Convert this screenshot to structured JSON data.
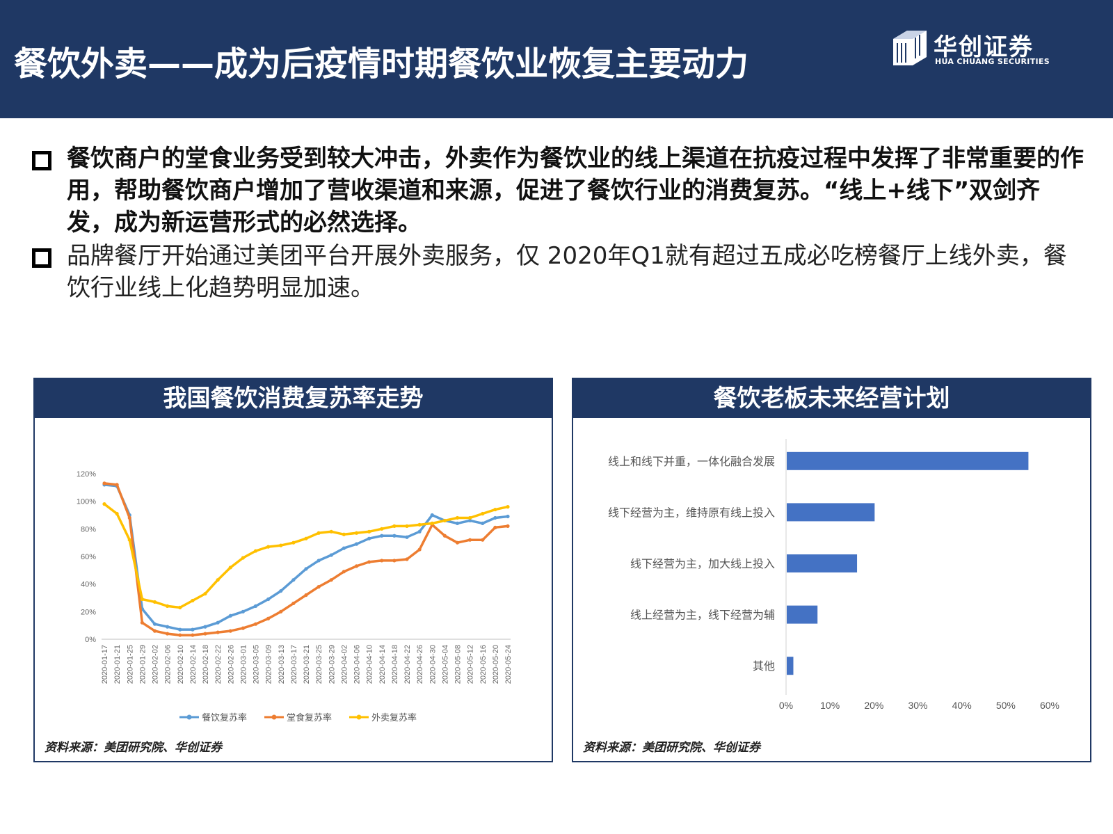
{
  "header": {
    "title": "餐饮外卖——成为后疫情时期餐饮业恢复主要动力",
    "logo_name": "华创证券",
    "logo_en": "HUA CHUANG SECURITIES"
  },
  "bullets": [
    {
      "text": "餐饮商户的堂食业务受到较大冲击，外卖作为餐饮业的线上渠道在抗疫过程中发挥了非常重要的作用，帮助餐饮商户增加了营收渠道和来源，促进了餐饮行业的消费复苏。“线上+线下”双剑齐发，成为新运营形式的必然选择。"
    },
    {
      "text": "品牌餐厅开始通过美团平台开展外卖服务，仅 2020年Q1就有超过五成必吃榜餐厅上线外卖，餐饮行业线上化趋势明显加速。"
    }
  ],
  "panels": {
    "left_title": "我国餐饮消费复苏率走势",
    "right_title": "餐饮老板未来经营计划",
    "source_left": "资料来源：美团研究院、华创证券",
    "source_right": "资料来源：美团研究院、华创证券"
  },
  "colors": {
    "navy": "#1f3864",
    "blue": "#5b9bd5",
    "orange": "#ed7d31",
    "yellow": "#ffc000",
    "bar": "#4472c4"
  },
  "chart_data": [
    {
      "type": "line",
      "x_labels": [
        "2020-01-17",
        "2020-01-21",
        "2020-01-25",
        "2020-01-29",
        "2020-02-02",
        "2020-02-06",
        "2020-02-10",
        "2020-02-14",
        "2020-02-18",
        "2020-02-22",
        "2020-02-26",
        "2020-03-01",
        "2020-03-05",
        "2020-03-09",
        "2020-03-13",
        "2020-03-17",
        "2020-03-21",
        "2020-03-25",
        "2020-03-29",
        "2020-04-02",
        "2020-04-06",
        "2020-04-10",
        "2020-04-14",
        "2020-04-18",
        "2020-04-22",
        "2020-04-26",
        "2020-04-30",
        "2020-05-04",
        "2020-05-08",
        "2020-05-12",
        "2020-05-16",
        "2020-05-20",
        "2020-05-24"
      ],
      "y_ticks": [
        "0%",
        "20%",
        "40%",
        "60%",
        "80%",
        "100%",
        "120%"
      ],
      "ylim": [
        0,
        120
      ],
      "series": [
        {
          "name": "餐饮复苏率",
          "color": "#5b9bd5",
          "values": [
            112,
            111,
            90,
            22,
            11,
            9,
            7,
            7,
            9,
            12,
            17,
            20,
            24,
            29,
            35,
            43,
            51,
            57,
            61,
            66,
            69,
            73,
            75,
            75,
            74,
            78,
            90,
            86,
            84,
            86,
            84,
            88,
            89
          ]
        },
        {
          "name": "堂食复苏率",
          "color": "#ed7d31",
          "values": [
            113,
            112,
            88,
            12,
            6,
            4,
            3,
            3,
            4,
            5,
            6,
            8,
            11,
            15,
            20,
            26,
            32,
            38,
            43,
            49,
            53,
            56,
            57,
            57,
            58,
            65,
            83,
            75,
            70,
            72,
            72,
            81,
            82
          ]
        },
        {
          "name": "外卖复苏率",
          "color": "#ffc000",
          "values": [
            98,
            91,
            72,
            29,
            27,
            24,
            23,
            28,
            33,
            43,
            52,
            59,
            64,
            67,
            68,
            70,
            73,
            77,
            78,
            76,
            77,
            78,
            80,
            82,
            82,
            83,
            84,
            86,
            88,
            88,
            91,
            94,
            96
          ]
        }
      ]
    },
    {
      "type": "bar",
      "orientation": "horizontal",
      "categories": [
        "线上和线下并重，一体化融合发展",
        "线下经营为主，维持原有线上投入",
        "线下经营为主，加大线上投入",
        "线上经营为主，线下经营为辅",
        "其他"
      ],
      "values": [
        55,
        20,
        16,
        7,
        1.5
      ],
      "x_ticks": [
        "0%",
        "10%",
        "20%",
        "30%",
        "40%",
        "50%",
        "60%"
      ],
      "xlim": [
        0,
        60
      ]
    }
  ]
}
